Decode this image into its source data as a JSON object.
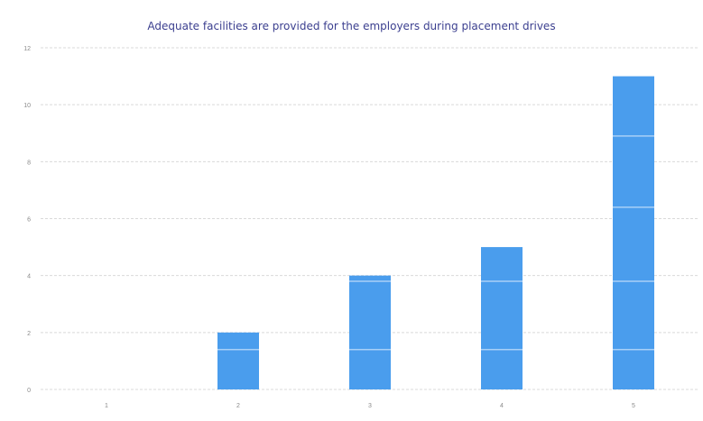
{
  "chart_data": {
    "type": "bar",
    "title": "Adequate facilities are provided for the employers during placement drives",
    "categories": [
      "1",
      "2",
      "3",
      "4",
      "5"
    ],
    "values": [
      0,
      2,
      4,
      5,
      11
    ],
    "ylim": [
      0,
      12
    ],
    "yticks": [
      "0",
      "2",
      "4",
      "6",
      "8",
      "10",
      "12"
    ],
    "xlabel": "",
    "ylabel": "",
    "grid": true,
    "legend": "none",
    "bar_color": "#4a9ded",
    "gridline_color": "#d9d9d9",
    "title_color": "#3b3f8f",
    "tick_label_color": "#8a8a8a"
  }
}
